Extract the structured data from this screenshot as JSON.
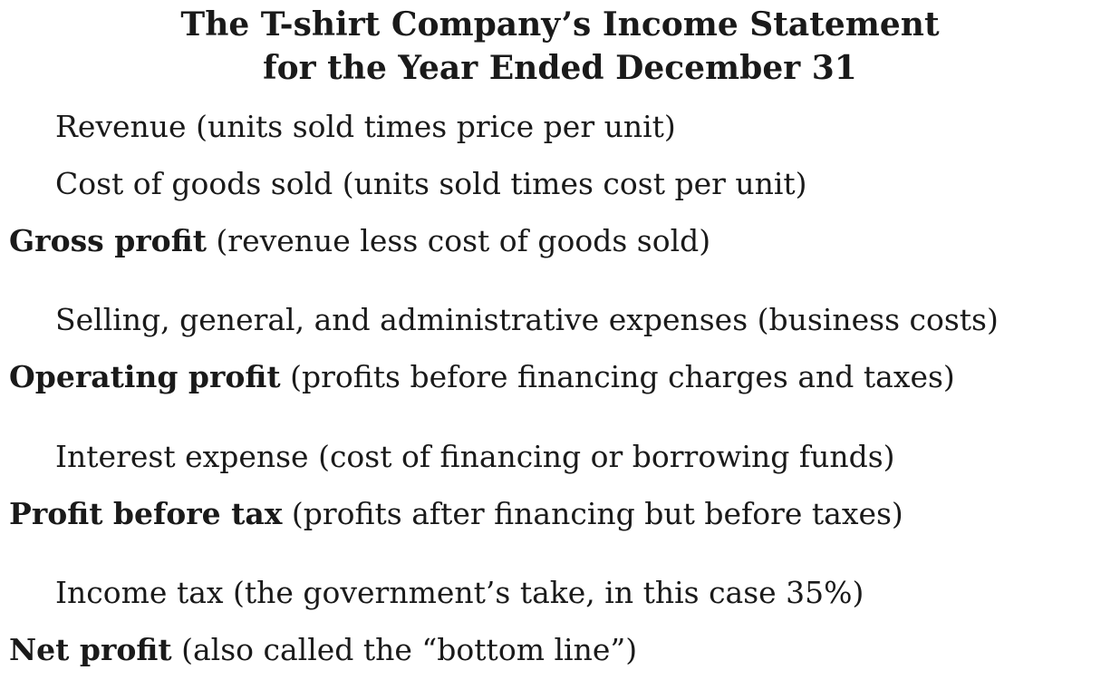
{
  "title": {
    "line1": "The T-shirt Company’s Income Statement",
    "line2": "for the Year Ended December 31"
  },
  "rows": [
    {
      "bold_part": "",
      "text": "Revenue (units sold times price per unit)"
    },
    {
      "bold_part": "",
      "text": "Cost of goods sold (units sold times cost per unit)"
    },
    {
      "bold_part": "Gross profit",
      "text": " (revenue less cost of goods sold)"
    },
    {
      "bold_part": "",
      "text": "Selling, general, and administrative expenses (business costs)"
    },
    {
      "bold_part": "Operating profit",
      "text": " (profits before financing charges and taxes)"
    },
    {
      "bold_part": "",
      "text": "Interest expense (cost of financing or borrowing funds)"
    },
    {
      "bold_part": "Profit before tax",
      "text": " (profits after financing but before taxes)"
    },
    {
      "bold_part": "",
      "text": "Income tax (the government’s take, in this case 35%)"
    },
    {
      "bold_part": "Net profit",
      "text": " (also called the “bottom line”)"
    }
  ]
}
